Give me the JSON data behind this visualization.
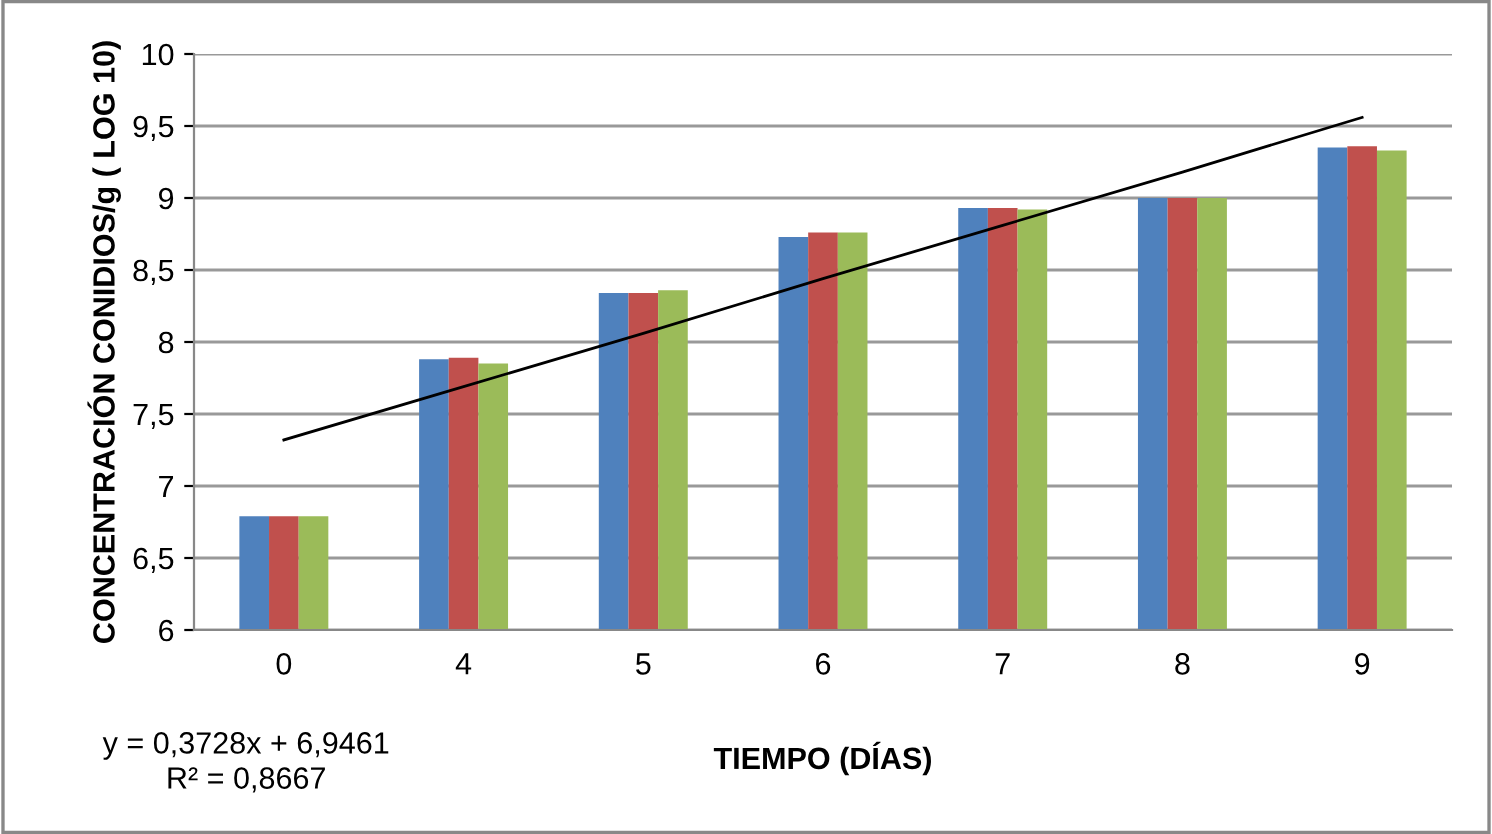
{
  "chart_data": {
    "type": "bar",
    "xlabel": "TIEMPO (DÍAS)",
    "ylabel": "CONCENTRACIÓN CONIDIOS/g ( LOG 10)",
    "categories": [
      "0",
      "4",
      "5",
      "6",
      "7",
      "8",
      "9"
    ],
    "series": [
      {
        "color": "#4f81bd",
        "values": [
          6.79,
          7.88,
          8.34,
          8.73,
          8.93,
          9.0,
          9.35
        ]
      },
      {
        "color": "#c0504d",
        "values": [
          6.79,
          7.89,
          8.34,
          8.76,
          8.93,
          9.0,
          9.36
        ]
      },
      {
        "color": "#9bbb59",
        "values": [
          6.79,
          7.85,
          8.36,
          8.76,
          8.92,
          9.0,
          9.33
        ]
      },
      {
        "type": "line",
        "color": "#000000",
        "values": [
          7.32,
          7.69,
          8.06,
          8.44,
          8.81,
          9.18,
          9.56
        ]
      }
    ],
    "ylim": [
      6,
      10
    ],
    "yticks": [
      6,
      {
        "value": 6.5,
        "label": "6,5"
      },
      7,
      {
        "value": 7.5,
        "label": "7,5"
      },
      8,
      {
        "value": 8.5,
        "label": "8,5"
      },
      9,
      {
        "value": 9.5,
        "label": "9,5"
      },
      10
    ],
    "grid": "y",
    "annotations": [
      "y = 0,3728x + 6,9461\nR² = 0,8667"
    ]
  }
}
